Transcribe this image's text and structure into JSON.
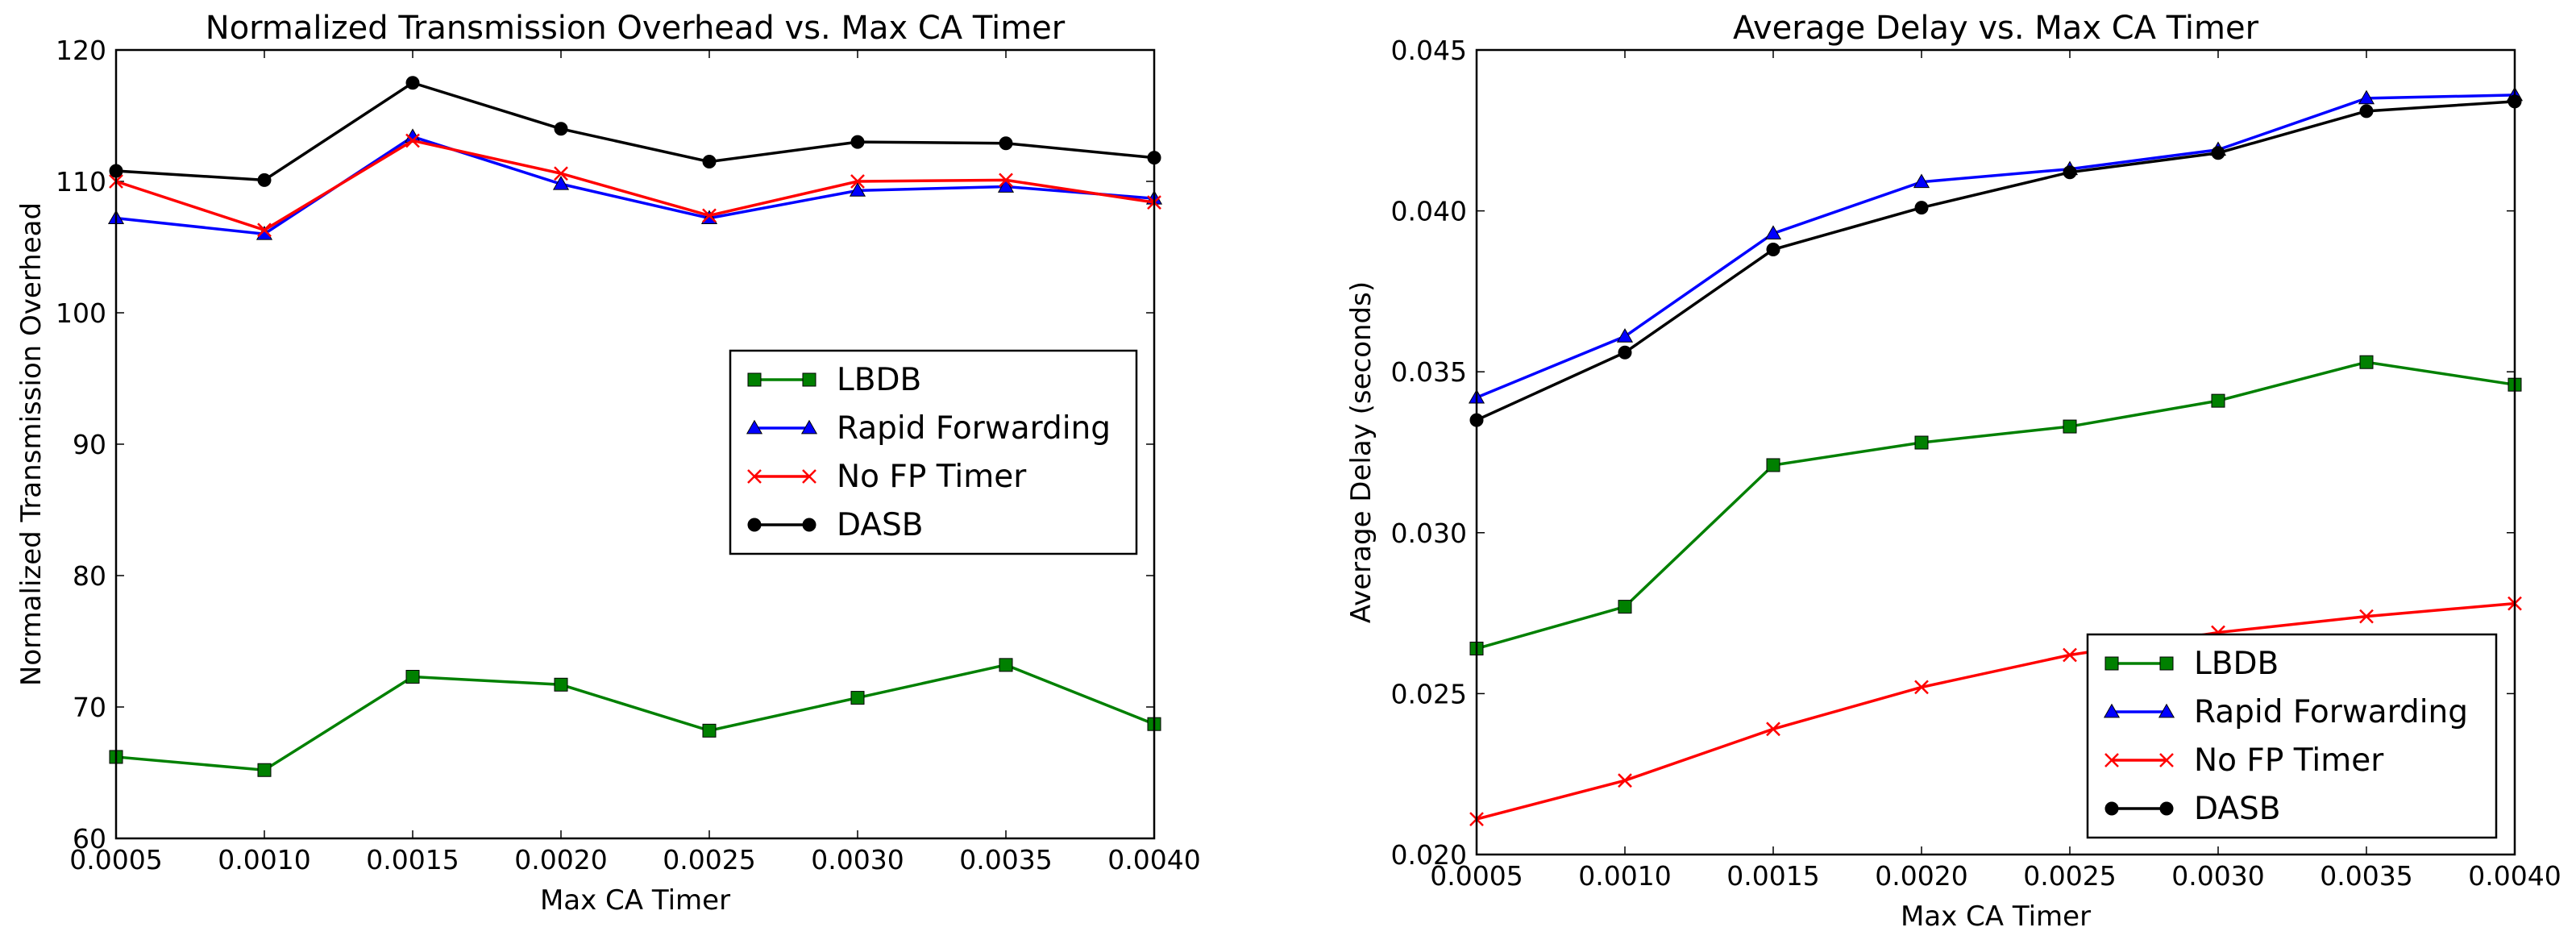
{
  "chart_data": [
    {
      "type": "line",
      "title": "Normalized Transmission Overhead vs. Max CA Timer",
      "xlabel": "Max CA Timer",
      "ylabel": "Normalized Transmission Overhead",
      "x": [
        0.0005,
        0.001,
        0.0015,
        0.002,
        0.0025,
        0.003,
        0.0035,
        0.004
      ],
      "xticks": [
        "0.0005",
        "0.0010",
        "0.0015",
        "0.0020",
        "0.0025",
        "0.0030",
        "0.0035",
        "0.0040"
      ],
      "xlim": [
        0.0005,
        0.004
      ],
      "ylim": [
        60,
        120
      ],
      "yticks": [
        "60",
        "70",
        "80",
        "90",
        "100",
        "110",
        "120"
      ],
      "ytick_values": [
        60,
        70,
        80,
        90,
        100,
        110,
        120
      ],
      "legend_position": "center-right",
      "series": [
        {
          "name": "LBDB",
          "color": "#008000",
          "marker": "square",
          "values": [
            66.2,
            65.2,
            72.3,
            71.7,
            68.2,
            70.7,
            73.2,
            68.7
          ]
        },
        {
          "name": "Rapid Forwarding",
          "color": "#0000ff",
          "marker": "triangle",
          "values": [
            107.2,
            106.0,
            113.4,
            109.8,
            107.2,
            109.3,
            109.6,
            108.7
          ]
        },
        {
          "name": "No FP Timer",
          "color": "#ff0000",
          "marker": "x",
          "values": [
            110.0,
            106.3,
            113.1,
            110.6,
            107.4,
            110.0,
            110.1,
            108.4
          ]
        },
        {
          "name": "DASB",
          "color": "#000000",
          "marker": "circle",
          "values": [
            110.8,
            110.1,
            117.5,
            114.0,
            111.5,
            113.0,
            112.9,
            111.8
          ]
        }
      ]
    },
    {
      "type": "line",
      "title": "Average Delay vs. Max CA Timer",
      "xlabel": "Max CA Timer",
      "ylabel": "Average Delay (seconds)",
      "x": [
        0.0005,
        0.001,
        0.0015,
        0.002,
        0.0025,
        0.003,
        0.0035,
        0.004
      ],
      "xticks": [
        "0.0005",
        "0.0010",
        "0.0015",
        "0.0020",
        "0.0025",
        "0.0030",
        "0.0035",
        "0.0040"
      ],
      "xlim": [
        0.0005,
        0.004
      ],
      "ylim": [
        0.02,
        0.045
      ],
      "yticks": [
        "0.020",
        "0.025",
        "0.030",
        "0.035",
        "0.040",
        "0.045"
      ],
      "ytick_values": [
        0.02,
        0.025,
        0.03,
        0.035,
        0.04,
        0.045
      ],
      "legend_position": "lower-right",
      "series": [
        {
          "name": "LBDB",
          "color": "#008000",
          "marker": "square",
          "values": [
            0.0264,
            0.0277,
            0.0321,
            0.0328,
            0.0333,
            0.0341,
            0.0353,
            0.0346
          ]
        },
        {
          "name": "Rapid Forwarding",
          "color": "#0000ff",
          "marker": "triangle",
          "values": [
            0.0342,
            0.0361,
            0.0393,
            0.0409,
            0.0413,
            0.0419,
            0.0435,
            0.0436
          ]
        },
        {
          "name": "No FP Timer",
          "color": "#ff0000",
          "marker": "x",
          "values": [
            0.0211,
            0.0223,
            0.0239,
            0.0252,
            0.0262,
            0.0269,
            0.0274,
            0.0278
          ]
        },
        {
          "name": "DASB",
          "color": "#000000",
          "marker": "circle",
          "values": [
            0.0335,
            0.0356,
            0.0388,
            0.0401,
            0.0412,
            0.0418,
            0.0431,
            0.0434
          ]
        }
      ]
    }
  ]
}
